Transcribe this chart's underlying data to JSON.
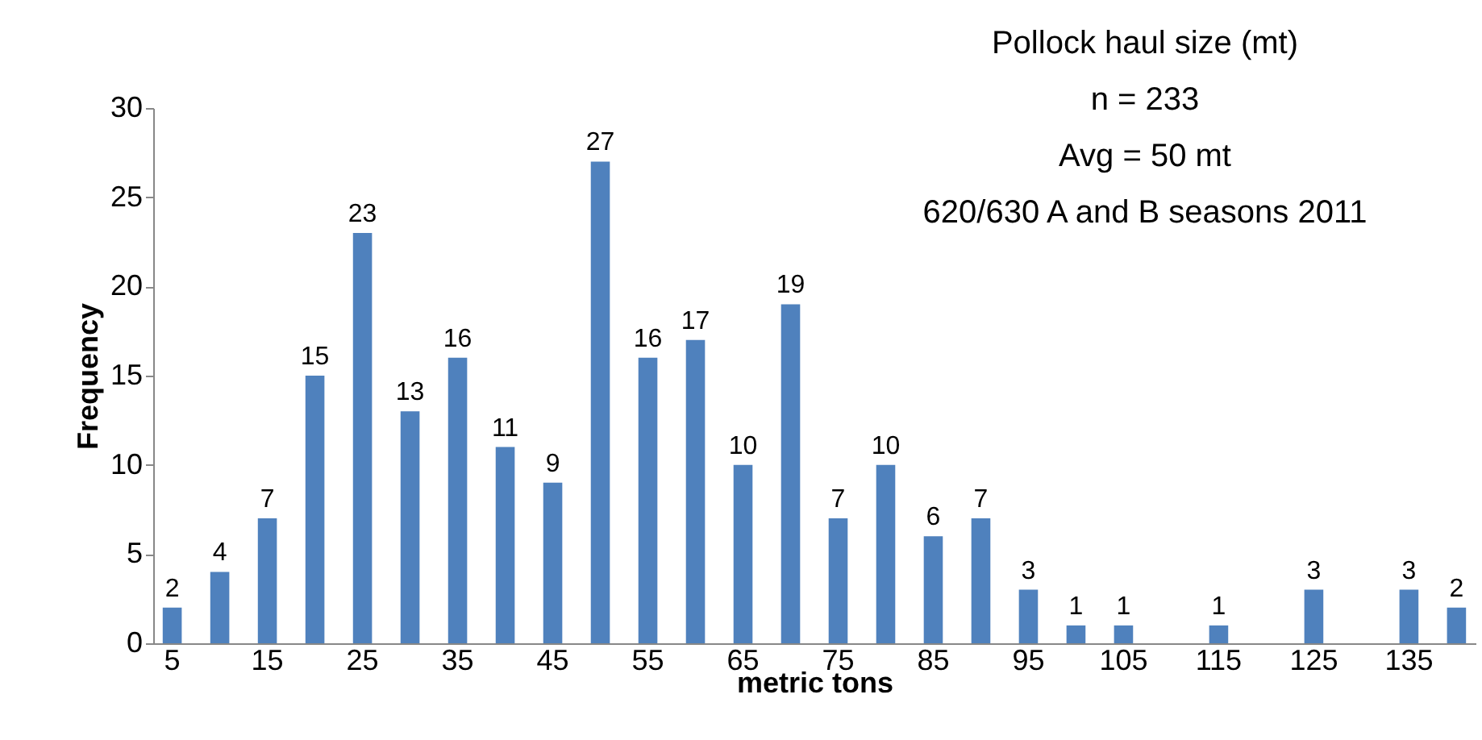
{
  "chart_data": {
    "type": "bar",
    "title": "Pollock haul size (mt)",
    "annotations": [
      "n = 233",
      "Avg = 50 mt",
      "620/630 A and B seasons 2011"
    ],
    "xlabel": "metric tons",
    "ylabel": "Frequency",
    "categories": [
      "5",
      null,
      "15",
      null,
      "25",
      null,
      "35",
      null,
      "45",
      null,
      "55",
      null,
      "65",
      null,
      "75",
      null,
      "85",
      null,
      "95",
      null,
      "105",
      null,
      "115",
      null,
      "125",
      null,
      "135",
      null
    ],
    "values": [
      2,
      4,
      7,
      15,
      23,
      13,
      16,
      11,
      9,
      27,
      16,
      17,
      10,
      19,
      7,
      10,
      6,
      7,
      3,
      1,
      1,
      0,
      1,
      0,
      3,
      0,
      3,
      2
    ],
    "value_labels": [
      "2",
      "4",
      "7",
      "15",
      "23",
      "13",
      "16",
      "11",
      "9",
      "27",
      "16",
      "17",
      "10",
      "19",
      "7",
      "10",
      "6",
      "7",
      "3",
      "1",
      "1",
      null,
      "1",
      null,
      "3",
      null,
      "3",
      "2"
    ],
    "color": "#4f81bd",
    "ylim": [
      0,
      30
    ],
    "yticks": [
      0,
      5,
      10,
      15,
      20,
      25,
      30
    ],
    "grid": false
  }
}
